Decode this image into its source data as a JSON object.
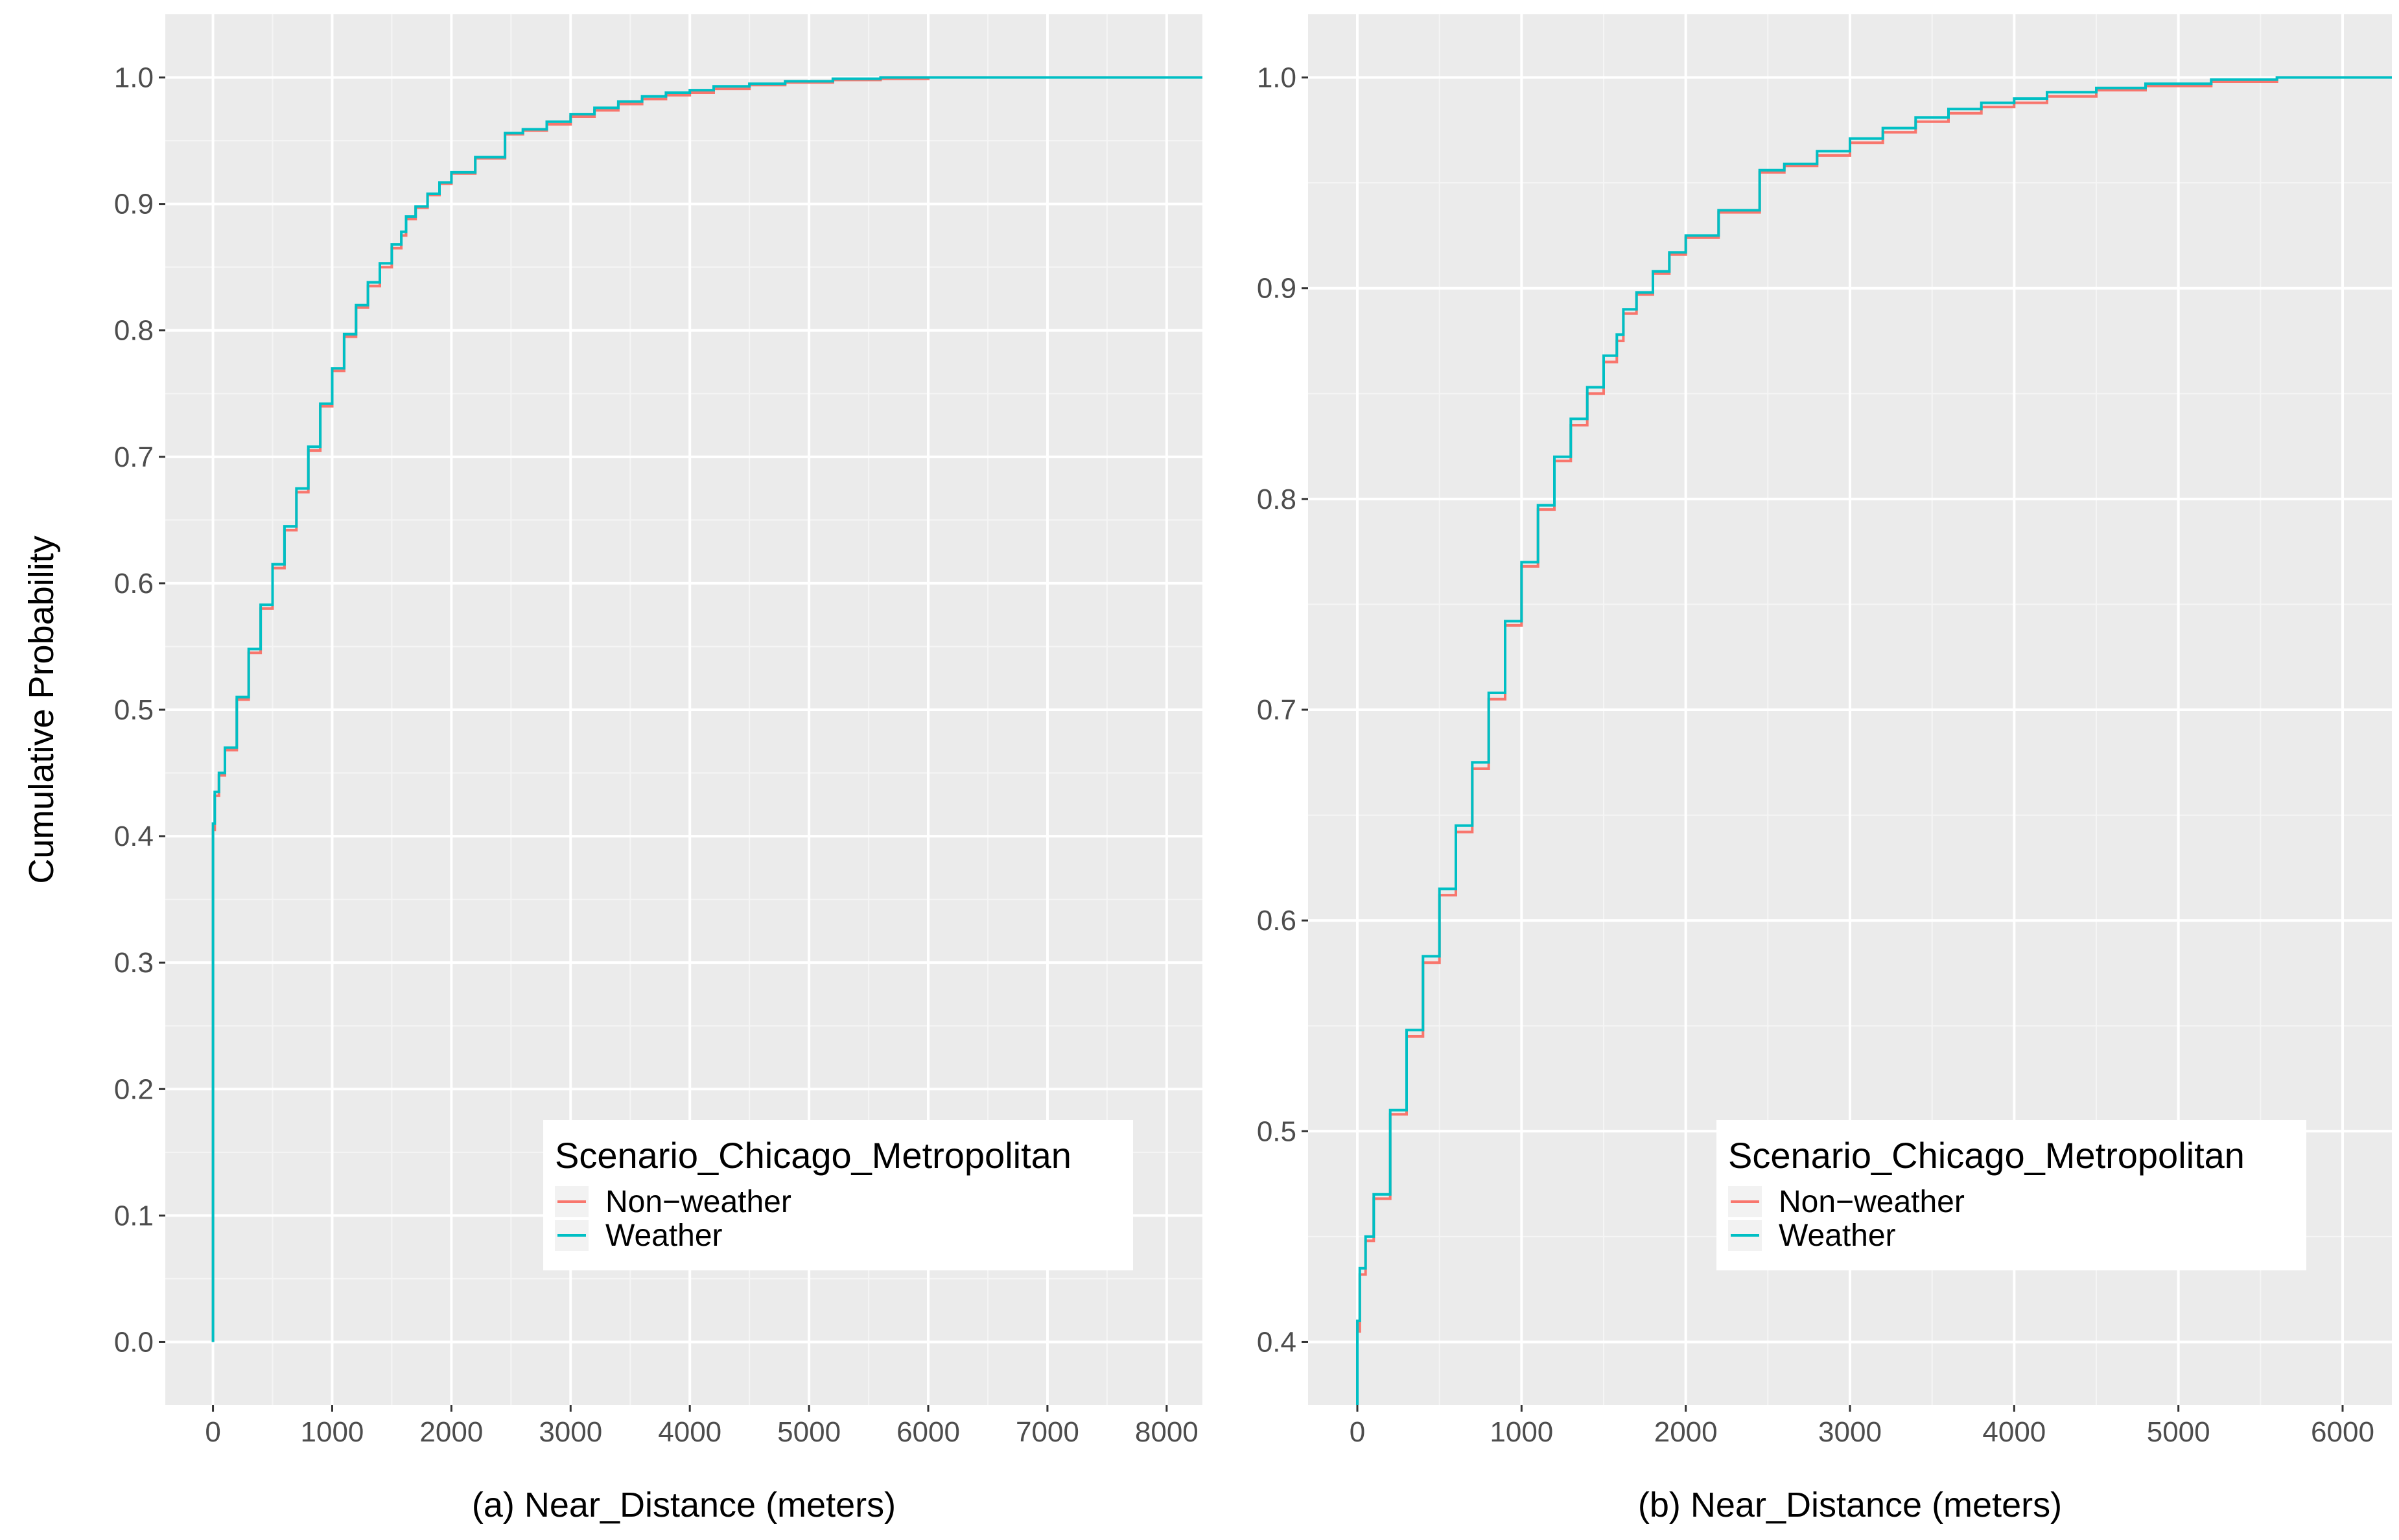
{
  "ylabel": "Cumulative Probability",
  "colors": {
    "panel_bg": "#EBEBEB",
    "grid_major": "#FFFFFF",
    "grid_minor": "#F5F5F5",
    "non_weather": "#F8766D",
    "weather": "#00BFC4"
  },
  "chart_data": [
    {
      "type": "line",
      "subtype": "ecdf",
      "xlabel": "(a) Near_Distance (meters)",
      "ylabel": "Cumulative Probability",
      "xlim": [
        -400,
        8300
      ],
      "ylim": [
        -0.05,
        1.05
      ],
      "xticks": [
        0,
        1000,
        2000,
        3000,
        4000,
        5000,
        6000,
        7000,
        8000
      ],
      "xtick_labels": [
        "0",
        "1000",
        "2000",
        "3000",
        "4000",
        "5000",
        "6000",
        "7000",
        "8000"
      ],
      "yticks": [
        0.0,
        0.1,
        0.2,
        0.3,
        0.4,
        0.5,
        0.6,
        0.7,
        0.8,
        0.9,
        1.0
      ],
      "ytick_labels": [
        "0.0",
        "0.1",
        "0.2",
        "0.3",
        "0.4",
        "0.5",
        "0.6",
        "0.7",
        "0.8",
        "0.9",
        "1.0"
      ],
      "grid": true,
      "legend": {
        "title": "Scenario_Chicago_Metropolitan",
        "position": "bottom-right",
        "entries": [
          "Non−weather",
          "Weather"
        ]
      },
      "series": [
        {
          "name": "Non−weather",
          "color": "#F8766D",
          "x": [
            0,
            0,
            15,
            50,
            100,
            200,
            300,
            400,
            500,
            600,
            700,
            800,
            900,
            1000,
            1100,
            1200,
            1300,
            1400,
            1500,
            1580,
            1620,
            1700,
            1800,
            1900,
            2000,
            2200,
            2450,
            2600,
            2800,
            3000,
            3200,
            3400,
            3600,
            3800,
            4000,
            4200,
            4500,
            4800,
            5200,
            5600,
            6000,
            7000,
            8300
          ],
          "y": [
            0.0,
            0.405,
            0.432,
            0.448,
            0.468,
            0.508,
            0.545,
            0.58,
            0.612,
            0.642,
            0.672,
            0.705,
            0.74,
            0.768,
            0.795,
            0.818,
            0.835,
            0.85,
            0.865,
            0.875,
            0.888,
            0.897,
            0.907,
            0.916,
            0.924,
            0.936,
            0.955,
            0.958,
            0.963,
            0.969,
            0.974,
            0.979,
            0.983,
            0.986,
            0.988,
            0.991,
            0.994,
            0.996,
            0.998,
            0.999,
            1.0,
            1.0,
            1.0
          ]
        },
        {
          "name": "Weather",
          "color": "#00BFC4",
          "x": [
            0,
            0,
            15,
            50,
            100,
            200,
            300,
            400,
            500,
            600,
            700,
            800,
            900,
            1000,
            1100,
            1200,
            1300,
            1400,
            1500,
            1580,
            1620,
            1700,
            1800,
            1900,
            2000,
            2200,
            2450,
            2600,
            2800,
            3000,
            3200,
            3400,
            3600,
            3800,
            4000,
            4200,
            4500,
            4800,
            5200,
            5600,
            6000,
            7000,
            8300
          ],
          "y": [
            0.0,
            0.41,
            0.435,
            0.45,
            0.47,
            0.51,
            0.548,
            0.583,
            0.615,
            0.645,
            0.675,
            0.708,
            0.742,
            0.77,
            0.797,
            0.82,
            0.838,
            0.853,
            0.868,
            0.878,
            0.89,
            0.898,
            0.908,
            0.917,
            0.925,
            0.937,
            0.956,
            0.959,
            0.965,
            0.971,
            0.976,
            0.981,
            0.985,
            0.988,
            0.99,
            0.993,
            0.995,
            0.997,
            0.999,
            1.0,
            1.0,
            1.0,
            1.0
          ]
        }
      ]
    },
    {
      "type": "line",
      "subtype": "ecdf",
      "xlabel": "(b) Near_Distance (meters)",
      "ylabel": "",
      "xlim": [
        -300,
        6300
      ],
      "ylim": [
        0.37,
        1.03
      ],
      "xticks": [
        0,
        1000,
        2000,
        3000,
        4000,
        5000,
        6000
      ],
      "xtick_labels": [
        "0",
        "1000",
        "2000",
        "3000",
        "4000",
        "5000",
        "6000"
      ],
      "yticks": [
        0.4,
        0.5,
        0.6,
        0.7,
        0.8,
        0.9,
        1.0
      ],
      "ytick_labels": [
        "0.4",
        "0.5",
        "0.6",
        "0.7",
        "0.8",
        "0.9",
        "1.0"
      ],
      "grid": true,
      "legend": {
        "title": "Scenario_Chicago_Metropolitan",
        "position": "bottom-right",
        "entries": [
          "Non−weather",
          "Weather"
        ]
      },
      "series": [
        {
          "name": "Non−weather",
          "color": "#F8766D",
          "x": [
            0,
            0,
            15,
            50,
            100,
            200,
            300,
            400,
            500,
            600,
            700,
            800,
            900,
            1000,
            1100,
            1200,
            1300,
            1400,
            1500,
            1580,
            1620,
            1700,
            1800,
            1900,
            2000,
            2200,
            2450,
            2600,
            2800,
            3000,
            3200,
            3400,
            3600,
            3800,
            4000,
            4200,
            4500,
            4800,
            5200,
            5600,
            6300
          ],
          "y": [
            0.37,
            0.405,
            0.432,
            0.448,
            0.468,
            0.508,
            0.545,
            0.58,
            0.612,
            0.642,
            0.672,
            0.705,
            0.74,
            0.768,
            0.795,
            0.818,
            0.835,
            0.85,
            0.865,
            0.875,
            0.888,
            0.897,
            0.907,
            0.916,
            0.924,
            0.936,
            0.955,
            0.958,
            0.963,
            0.969,
            0.974,
            0.979,
            0.983,
            0.986,
            0.988,
            0.991,
            0.994,
            0.996,
            0.998,
            1.0,
            1.0
          ]
        },
        {
          "name": "Weather",
          "color": "#00BFC4",
          "x": [
            0,
            0,
            15,
            50,
            100,
            200,
            300,
            400,
            500,
            600,
            700,
            800,
            900,
            1000,
            1100,
            1200,
            1300,
            1400,
            1500,
            1580,
            1620,
            1700,
            1800,
            1900,
            2000,
            2200,
            2450,
            2600,
            2800,
            3000,
            3200,
            3400,
            3600,
            3800,
            4000,
            4200,
            4500,
            4800,
            5200,
            5600,
            6300
          ],
          "y": [
            0.37,
            0.41,
            0.435,
            0.45,
            0.47,
            0.51,
            0.548,
            0.583,
            0.615,
            0.645,
            0.675,
            0.708,
            0.742,
            0.77,
            0.797,
            0.82,
            0.838,
            0.853,
            0.868,
            0.878,
            0.89,
            0.898,
            0.908,
            0.917,
            0.925,
            0.937,
            0.956,
            0.959,
            0.965,
            0.971,
            0.976,
            0.981,
            0.985,
            0.988,
            0.99,
            0.993,
            0.995,
            0.997,
            0.999,
            1.0,
            1.0
          ]
        }
      ]
    }
  ]
}
